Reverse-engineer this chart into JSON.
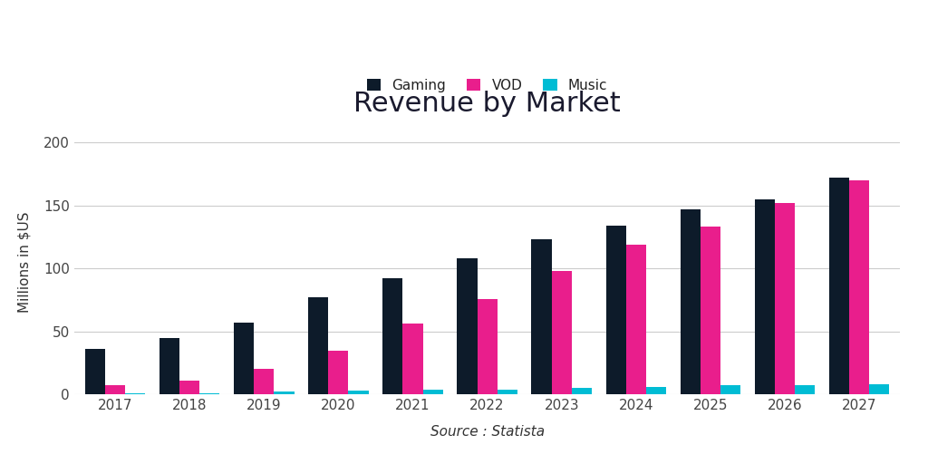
{
  "title": "Revenue by Market",
  "xlabel": "Source : Statista",
  "ylabel": "Millions in $US",
  "years": [
    2017,
    2018,
    2019,
    2020,
    2021,
    2022,
    2023,
    2024,
    2025,
    2026,
    2027
  ],
  "gaming": [
    36,
    45,
    57,
    77,
    92,
    108,
    123,
    134,
    147,
    155,
    172
  ],
  "vod": [
    7,
    11,
    20,
    35,
    56,
    76,
    98,
    119,
    133,
    152,
    170
  ],
  "music": [
    1,
    1,
    2,
    3,
    4,
    4,
    5,
    6,
    7,
    7,
    8
  ],
  "gaming_color": "#0d1b2a",
  "vod_color": "#e91e8c",
  "music_color": "#00bcd4",
  "bg_color": "#ffffff",
  "grid_color": "#cccccc",
  "legend_labels": [
    "Gaming",
    "VOD",
    "Music"
  ],
  "ylim": [
    0,
    210
  ],
  "yticks": [
    0,
    50,
    100,
    150,
    200
  ],
  "bar_width": 0.27,
  "title_fontsize": 22,
  "axis_label_fontsize": 11,
  "legend_fontsize": 11,
  "tick_fontsize": 11
}
